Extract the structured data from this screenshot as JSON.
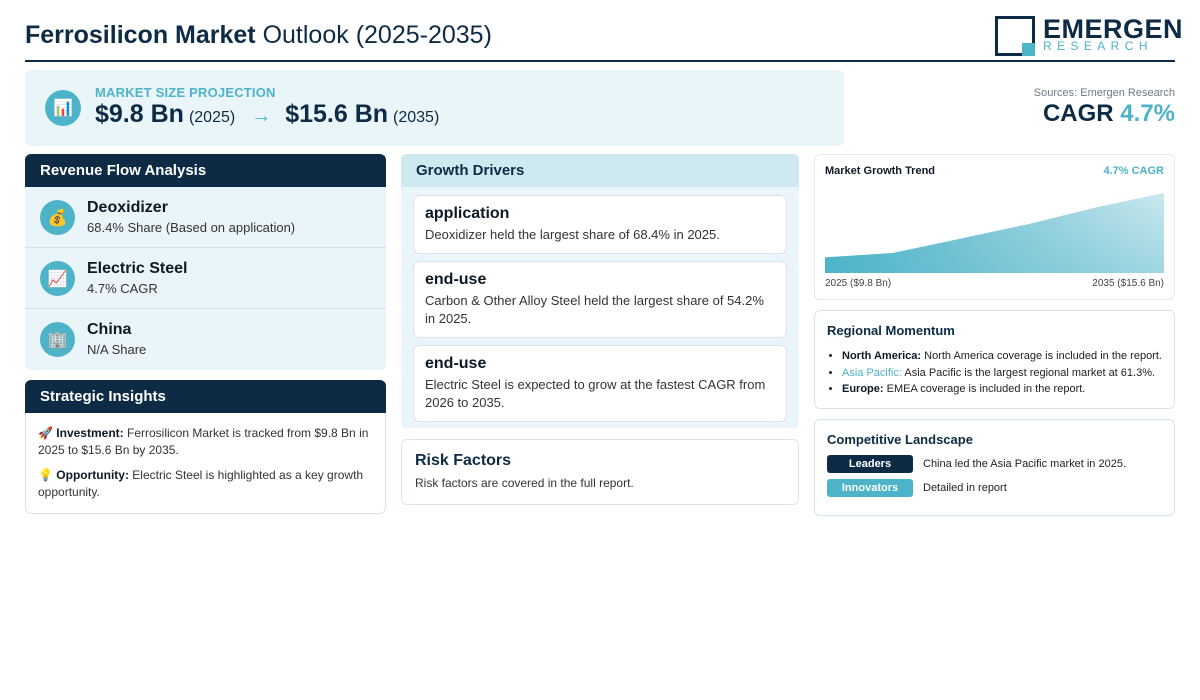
{
  "header": {
    "title_bold": "Ferrosilicon Market",
    "title_rest": " Outlook (2025-2035)",
    "logo_name": "EMERGEN",
    "logo_sub": "RESEARCH"
  },
  "projection": {
    "icon": "bar-chart-icon",
    "label": "MARKET SIZE PROJECTION",
    "start_value": "$9.8 Bn",
    "start_year": "(2025)",
    "arrow": "→",
    "end_value": "$15.6 Bn",
    "end_year": "(2035)"
  },
  "sources": "Sources: Emergen Research",
  "cagr": {
    "label": "CAGR",
    "value": "4.7%"
  },
  "revenue_flow": {
    "title": "Revenue Flow Analysis",
    "items": [
      {
        "icon": "money-bag-icon",
        "glyph": "💰",
        "title": "Deoxidizer",
        "sub": "68.4% Share (Based on application)"
      },
      {
        "icon": "chart-up-icon",
        "glyph": "📈",
        "title": "Electric Steel",
        "sub": "4.7% CAGR"
      },
      {
        "icon": "building-icon",
        "glyph": "🏢",
        "title": "China",
        "sub": "N/A Share"
      }
    ]
  },
  "strategic": {
    "title": "Strategic Insights",
    "items": [
      {
        "glyph": "🚀",
        "label": "Investment:",
        "text": " Ferrosilicon Market is tracked from $9.8 Bn in 2025 to $15.6 Bn by 2035."
      },
      {
        "glyph": "💡",
        "label": "Opportunity:",
        "text": " Electric Steel is highlighted as a key growth opportunity."
      }
    ]
  },
  "drivers": {
    "title": "Growth Drivers",
    "items": [
      {
        "title": "application",
        "text": "Deoxidizer held the largest share of 68.4% in 2025."
      },
      {
        "title": "end-use",
        "text": "Carbon & Other Alloy Steel held the largest share of 54.2% in 2025."
      },
      {
        "title": "end-use",
        "text": "Electric Steel is expected to grow at the fastest CAGR from 2026 to 2035."
      }
    ]
  },
  "risk": {
    "title": "Risk Factors",
    "text": "Risk factors are covered in the full report."
  },
  "trend": {
    "title": "Market Growth Trend",
    "cagr_label": "4.7% CAGR",
    "start_label": "2025 ($9.8 Bn)",
    "end_label": "2035 ($15.6 Bn)"
  },
  "chart_data": {
    "type": "area",
    "x": [
      2025,
      2027,
      2029,
      2031,
      2033,
      2035
    ],
    "values": [
      9.8,
      10.2,
      11.5,
      12.8,
      14.3,
      15.6
    ],
    "ylim": [
      8.4,
      15.6
    ]
  },
  "regional": {
    "title": "Regional Momentum",
    "items": [
      {
        "name": "North America:",
        "text": " North America coverage is included in the report."
      },
      {
        "name": "Asia Pacific:",
        "text": " Asia Pacific is the largest regional market at 61.3%."
      },
      {
        "name": "Europe:",
        "text": " EMEA coverage is included in the report."
      }
    ]
  },
  "competitive": {
    "title": "Competitive Landscape",
    "rows": [
      {
        "badge": "Leaders",
        "color": "#0d2b45",
        "text": "China led the Asia Pacific market in 2025."
      },
      {
        "badge": "Innovators",
        "color": "#4db3c8",
        "text": "Detailed in report"
      }
    ]
  },
  "colors": {
    "navy": "#0d2b45",
    "accent": "#4db3c8",
    "panel": "#e9f5f8"
  }
}
